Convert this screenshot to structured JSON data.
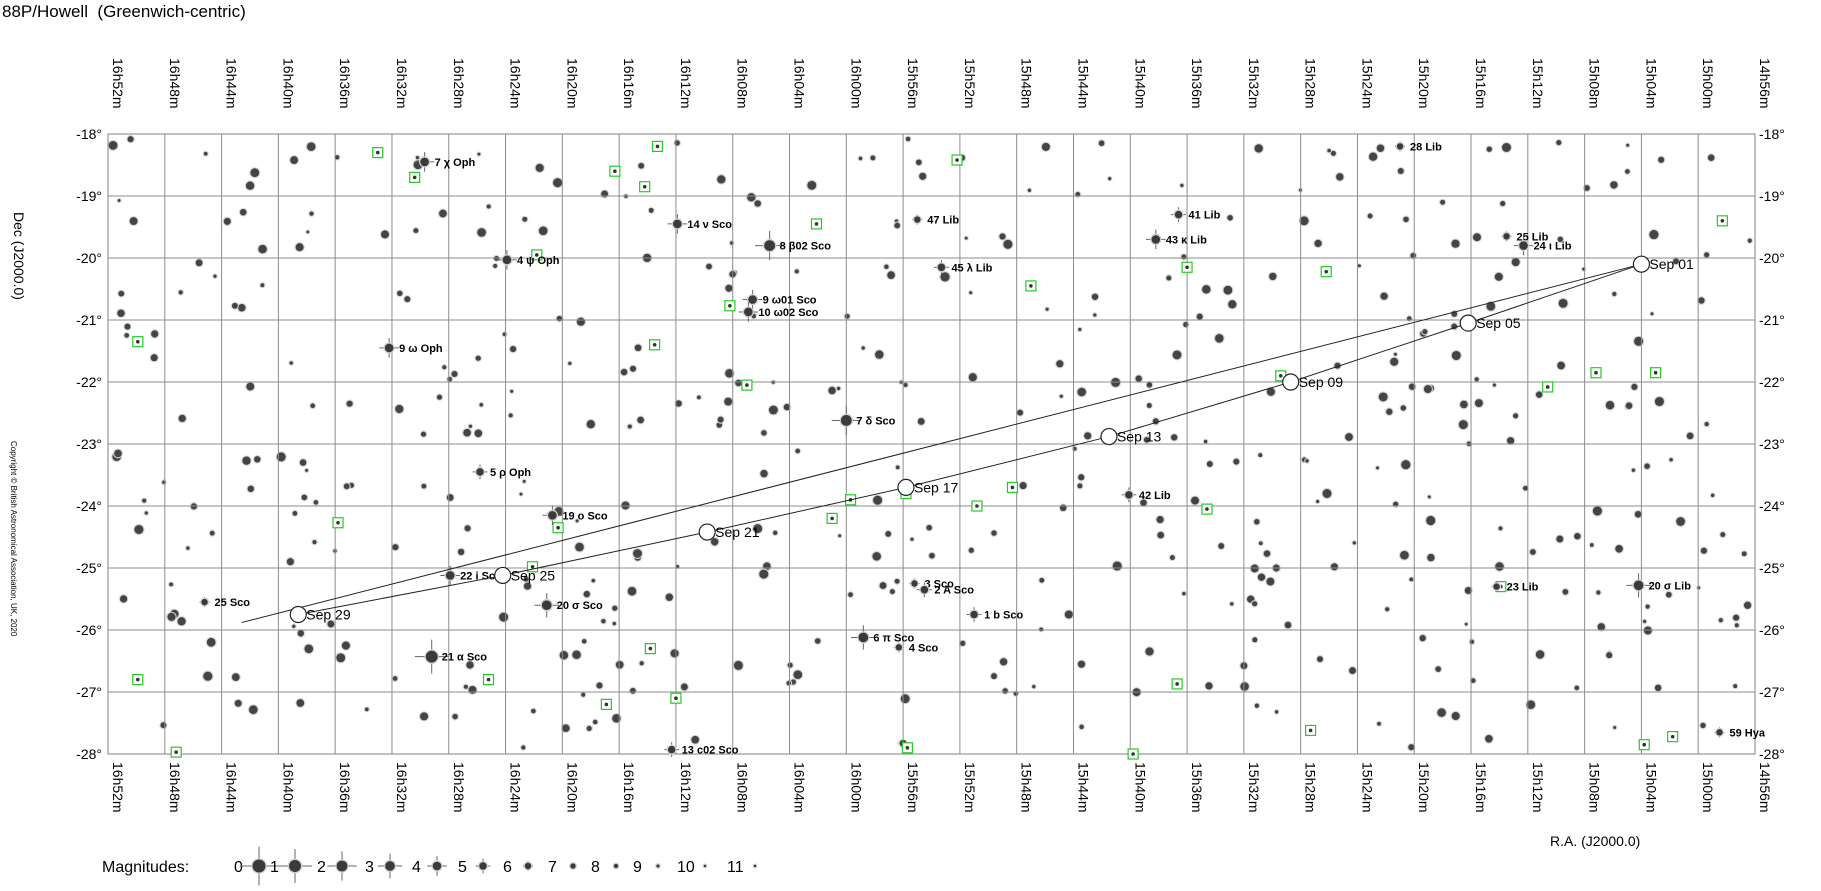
{
  "title": "88P/Howell  (Greenwich-centric)",
  "copyright": "Copyright © British Astronomical Association, UK, 2020",
  "chart_data": {
    "type": "scatter",
    "projection": "rectangular",
    "xlabel": "R.A. (J2000.0)",
    "ylabel": "Dec (J2000.0)",
    "xlim_ra_min": [
      1012,
      896
    ],
    "ylim_dec": [
      -28,
      -18
    ],
    "grid": true,
    "ra_ticks": [
      "16h52m",
      "16h48m",
      "16h44m",
      "16h40m",
      "16h36m",
      "16h32m",
      "16h28m",
      "16h24m",
      "16h20m",
      "16h16m",
      "16h12m",
      "16h08m",
      "16h04m",
      "16h00m",
      "15h56m",
      "15h52m",
      "15h48m",
      "15h44m",
      "15h40m",
      "15h36m",
      "15h32m",
      "15h28m",
      "15h24m",
      "15h20m",
      "15h16m",
      "15h12m",
      "15h08m",
      "15h04m",
      "15h00m",
      "14h56m"
    ],
    "dec_ticks": [
      "-18°",
      "-19°",
      "-20°",
      "-21°",
      "-22°",
      "-23°",
      "-24°",
      "-25°",
      "-26°",
      "-27°",
      "-28°"
    ],
    "comet_path": [
      {
        "label": "Sep 01",
        "ra_min": 904.0,
        "dec": -20.1
      },
      {
        "label": "Sep 05",
        "ra_min": 916.2,
        "dec": -21.05
      },
      {
        "label": "Sep 09",
        "ra_min": 928.7,
        "dec": -22.0
      },
      {
        "label": "Sep 13",
        "ra_min": 941.5,
        "dec": -22.88
      },
      {
        "label": "Sep 17",
        "ra_min": 955.8,
        "dec": -23.7
      },
      {
        "label": "Sep 21",
        "ra_min": 969.8,
        "dec": -24.42
      },
      {
        "label": "Sep 25",
        "ra_min": 984.2,
        "dec": -25.12
      },
      {
        "label": "Sep 29",
        "ra_min": 998.6,
        "dec": -25.75
      }
    ],
    "path_extent": [
      {
        "ra_min": 904.0,
        "dec": -20.1
      },
      {
        "ra_min": 1002.6,
        "dec": -25.88
      }
    ],
    "labeled_stars": [
      {
        "name": "7 χ Oph",
        "ra_min": 989.7,
        "dec": -18.45,
        "mag": 4
      },
      {
        "name": "14 ν Sco",
        "ra_min": 971.9,
        "dec": -19.45,
        "mag": 4
      },
      {
        "name": "8 β02 Sco",
        "ra_min": 965.4,
        "dec": -19.8,
        "mag": 2
      },
      {
        "name": "47 Lib",
        "ra_min": 955.0,
        "dec": -19.38,
        "mag": 6
      },
      {
        "name": "41 Lib",
        "ra_min": 936.6,
        "dec": -19.3,
        "mag": 5
      },
      {
        "name": "43 κ Lib",
        "ra_min": 938.2,
        "dec": -19.7,
        "mag": 4
      },
      {
        "name": "28 Lib",
        "ra_min": 921.0,
        "dec": -18.2,
        "mag": 6
      },
      {
        "name": "25 Lib",
        "ra_min": 913.5,
        "dec": -19.65,
        "mag": 6
      },
      {
        "name": "24 ι Lib",
        "ra_min": 912.3,
        "dec": -19.8,
        "mag": 4
      },
      {
        "name": "4 ψ Oph",
        "ra_min": 983.9,
        "dec": -20.03,
        "mag": 4
      },
      {
        "name": "45 λ Lib",
        "ra_min": 953.3,
        "dec": -20.15,
        "mag": 5
      },
      {
        "name": "9 ω01 Sco",
        "ra_min": 966.6,
        "dec": -20.67,
        "mag": 4
      },
      {
        "name": "10 ω02 Sco",
        "ra_min": 966.9,
        "dec": -20.87,
        "mag": 4
      },
      {
        "name": "9 ω Oph",
        "ra_min": 992.2,
        "dec": -21.45,
        "mag": 4
      },
      {
        "name": "7 δ Sco",
        "ra_min": 960.0,
        "dec": -22.62,
        "mag": 2
      },
      {
        "name": "5 ρ Oph",
        "ra_min": 985.8,
        "dec": -23.45,
        "mag": 5
      },
      {
        "name": "42 Lib",
        "ra_min": 940.1,
        "dec": -23.82,
        "mag": 5
      },
      {
        "name": "19 ο Sco",
        "ra_min": 980.7,
        "dec": -24.15,
        "mag": 4
      },
      {
        "name": "22 i Sco",
        "ra_min": 987.9,
        "dec": -25.12,
        "mag": 4
      },
      {
        "name": "20 σ Sco",
        "ra_min": 981.1,
        "dec": -25.6,
        "mag": 3
      },
      {
        "name": "3 Sco",
        "ra_min": 955.2,
        "dec": -25.25,
        "mag": 6
      },
      {
        "name": "2 A Sco",
        "ra_min": 954.5,
        "dec": -25.35,
        "mag": 5
      },
      {
        "name": "1 b Sco",
        "ra_min": 951.0,
        "dec": -25.75,
        "mag": 5
      },
      {
        "name": "21 α Sco",
        "ra_min": 989.2,
        "dec": -26.43,
        "mag": 1
      },
      {
        "name": "6 π Sco",
        "ra_min": 958.8,
        "dec": -26.12,
        "mag": 3
      },
      {
        "name": "4 Sco",
        "ra_min": 956.3,
        "dec": -26.28,
        "mag": 6
      },
      {
        "name": "25 Sco",
        "ra_min": 1005.2,
        "dec": -25.55,
        "mag": 6
      },
      {
        "name": "13 c02 Sco",
        "ra_min": 972.3,
        "dec": -27.93,
        "mag": 5
      },
      {
        "name": "23 Lib",
        "ra_min": 914.2,
        "dec": -25.3,
        "mag": 6
      },
      {
        "name": "20 σ Lib",
        "ra_min": 904.2,
        "dec": -25.28,
        "mag": 3
      },
      {
        "name": "59 Hya",
        "ra_min": 898.5,
        "dec": -27.65,
        "mag": 6
      }
    ],
    "galaxies": [
      {
        "ra_min": 993.0,
        "dec": -18.3
      },
      {
        "ra_min": 990.4,
        "dec": -18.7
      },
      {
        "ra_min": 973.3,
        "dec": -18.2
      },
      {
        "ra_min": 976.3,
        "dec": -18.6
      },
      {
        "ra_min": 974.2,
        "dec": -18.85
      },
      {
        "ra_min": 962.1,
        "dec": -19.45
      },
      {
        "ra_min": 952.2,
        "dec": -18.42
      },
      {
        "ra_min": 981.8,
        "dec": -19.95
      },
      {
        "ra_min": 968.2,
        "dec": -20.77
      },
      {
        "ra_min": 967.0,
        "dec": -22.05
      },
      {
        "ra_min": 973.5,
        "dec": -21.4
      },
      {
        "ra_min": 947.0,
        "dec": -20.45
      },
      {
        "ra_min": 936.0,
        "dec": -20.15
      },
      {
        "ra_min": 926.2,
        "dec": -20.22
      },
      {
        "ra_min": 1009.9,
        "dec": -21.35
      },
      {
        "ra_min": 929.4,
        "dec": -21.9
      },
      {
        "ra_min": 910.6,
        "dec": -22.08
      },
      {
        "ra_min": 907.2,
        "dec": -21.85
      },
      {
        "ra_min": 903.0,
        "dec": -21.85
      },
      {
        "ra_min": 898.3,
        "dec": -19.4
      },
      {
        "ra_min": 995.8,
        "dec": -24.27
      },
      {
        "ra_min": 980.3,
        "dec": -24.35
      },
      {
        "ra_min": 982.1,
        "dec": -24.98
      },
      {
        "ra_min": 961.0,
        "dec": -24.2
      },
      {
        "ra_min": 959.7,
        "dec": -23.9
      },
      {
        "ra_min": 955.8,
        "dec": -23.8
      },
      {
        "ra_min": 950.8,
        "dec": -24.0
      },
      {
        "ra_min": 948.3,
        "dec": -23.7
      },
      {
        "ra_min": 934.6,
        "dec": -24.05
      },
      {
        "ra_min": 913.9,
        "dec": -25.3
      },
      {
        "ra_min": 1009.9,
        "dec": -26.8
      },
      {
        "ra_min": 1007.2,
        "dec": -27.97
      },
      {
        "ra_min": 985.2,
        "dec": -26.8
      },
      {
        "ra_min": 973.8,
        "dec": -26.3
      },
      {
        "ra_min": 976.9,
        "dec": -27.2
      },
      {
        "ra_min": 972.0,
        "dec": -27.1
      },
      {
        "ra_min": 955.7,
        "dec": -27.9
      },
      {
        "ra_min": 939.8,
        "dec": -28.0
      },
      {
        "ra_min": 936.7,
        "dec": -26.87
      },
      {
        "ra_min": 927.3,
        "dec": -27.62
      },
      {
        "ra_min": 903.8,
        "dec": -27.85
      },
      {
        "ra_min": 901.8,
        "dec": -27.72
      }
    ],
    "legend": {
      "label": "Magnitudes:",
      "values": [
        "0",
        "1",
        "2",
        "3",
        "4",
        "5",
        "6",
        "7",
        "8",
        "9",
        "10",
        "11"
      ]
    }
  }
}
